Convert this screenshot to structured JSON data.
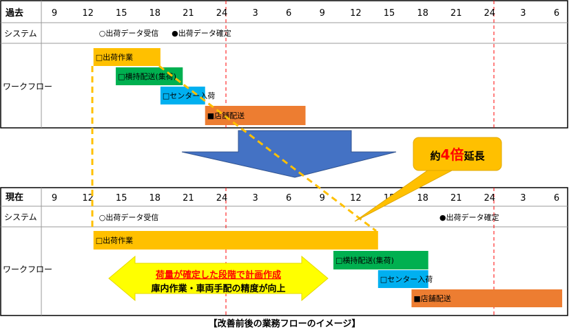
{
  "past": {
    "header_label": "過去",
    "hours": [
      "9",
      "12",
      "15",
      "18",
      "21",
      "24",
      "3",
      "6",
      "9",
      "12",
      "15",
      "18",
      "21",
      "24",
      "3",
      "6"
    ],
    "system_label": "システム",
    "workflow_label": "ワークフロー",
    "system_events": [
      {
        "text": "○出荷データ受信",
        "hour": 13
      },
      {
        "text": "●出荷データ確定",
        "hour": 19.5
      }
    ],
    "bars": [
      {
        "label": "□出荷作業",
        "start": 12.5,
        "end": 18.5,
        "color": "#FFC000",
        "row": 0
      },
      {
        "label": "□横持配送(集荷)",
        "start": 14.5,
        "end": 20.5,
        "color": "#00B050",
        "row": 1
      },
      {
        "label": "□センター入荷",
        "start": 18.5,
        "end": 22.5,
        "color": "#00B0F0",
        "row": 2
      },
      {
        "label": "■店舗配送",
        "start": 22.5,
        "end": 31.5,
        "color": "#ED7D31",
        "row": 3
      }
    ]
  },
  "current": {
    "header_label": "現在",
    "hours": [
      "9",
      "12",
      "15",
      "18",
      "21",
      "24",
      "3",
      "6",
      "9",
      "12",
      "15",
      "18",
      "21",
      "24",
      "3",
      "6"
    ],
    "system_label": "システム",
    "workflow_label": "ワークフロー",
    "system_events": [
      {
        "text": "○出荷データ受信",
        "hour": 13
      },
      {
        "text": "●出荷データ確定",
        "hour": 43.5
      }
    ],
    "bars": [
      {
        "label": "□出荷作業",
        "start": 12.5,
        "end": 38,
        "color": "#FFC000",
        "row": 0
      },
      {
        "label": "□横持配送(集荷)",
        "start": 34,
        "end": 42.5,
        "color": "#00B050",
        "row": 1
      },
      {
        "label": "□センター入荷",
        "start": 38,
        "end": 42.5,
        "color": "#00B0F0",
        "row": 2
      },
      {
        "label": "■店舗配送",
        "start": 41,
        "end": 54.5,
        "color": "#ED7D31",
        "row": 3
      }
    ]
  },
  "callout": {
    "prefix": "約",
    "emphasis": "4倍",
    "suffix": "延長"
  },
  "note": {
    "line1": "荷量が確定した段階で計画作成",
    "line2": "庫内作業・車両手配の精度が向上"
  },
  "caption": "【改善前後の業務フローのイメージ】",
  "colors": {
    "accent_red": "#FF0000",
    "arrow_blue": "#4472C4",
    "dashed_orange": "#FFC000",
    "note_yellow": "#FFFF00"
  }
}
